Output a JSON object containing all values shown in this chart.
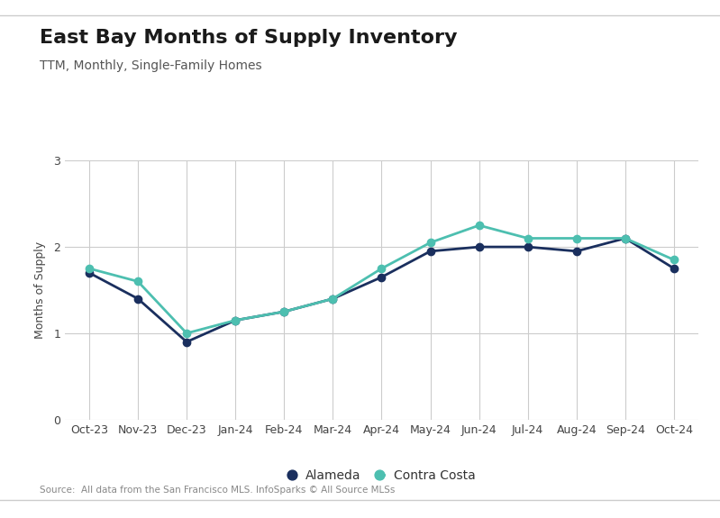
{
  "title": "East Bay Months of Supply Inventory",
  "subtitle": "TTM, Monthly, Single-Family Homes",
  "ylabel": "Months of Supply",
  "source_text": "Source:  All data from the San Francisco MLS. InfoSparks © All Source MLSs",
  "x_labels": [
    "Oct-23",
    "Nov-23",
    "Dec-23",
    "Jan-24",
    "Feb-24",
    "Mar-24",
    "Apr-24",
    "May-24",
    "Jun-24",
    "Jul-24",
    "Aug-24",
    "Sep-24",
    "Oct-24"
  ],
  "alameda": [
    1.7,
    1.4,
    0.9,
    1.15,
    1.25,
    1.4,
    1.65,
    1.95,
    2.0,
    2.0,
    1.95,
    2.1,
    1.75
  ],
  "contra_costa": [
    1.75,
    1.6,
    1.0,
    1.15,
    1.25,
    1.4,
    1.75,
    2.05,
    2.25,
    2.1,
    2.1,
    2.1,
    1.85
  ],
  "alameda_color": "#1a2f5e",
  "contra_costa_color": "#4dbfb0",
  "ylim": [
    0,
    3
  ],
  "yticks": [
    0,
    1,
    2,
    3
  ],
  "background_color": "#ffffff",
  "plot_bg_color": "#ffffff",
  "grid_color": "#cccccc",
  "title_fontsize": 16,
  "subtitle_fontsize": 10,
  "label_fontsize": 9,
  "tick_fontsize": 9,
  "legend_fontsize": 10,
  "source_fontsize": 7.5,
  "line_width": 2,
  "marker_size": 6
}
